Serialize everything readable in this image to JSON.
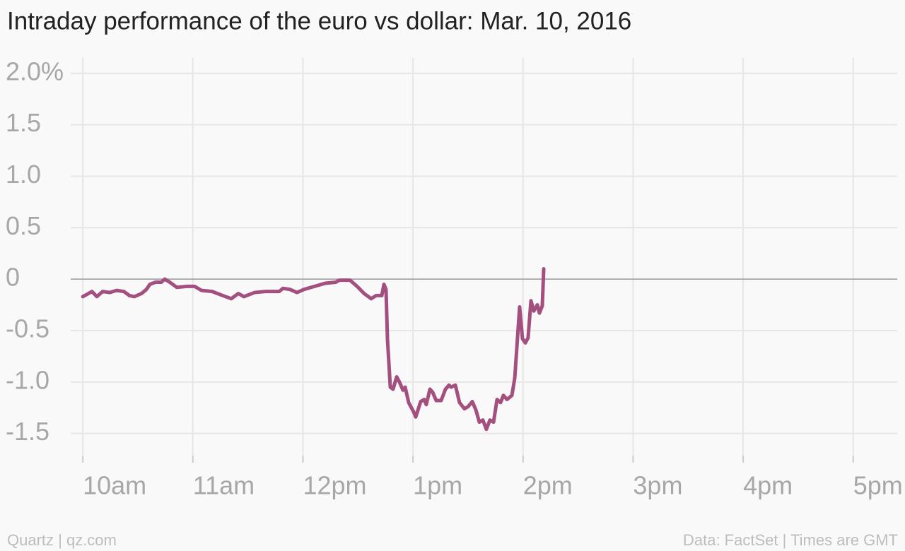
{
  "chart_data": {
    "type": "line",
    "title": "Intraday performance of the euro vs dollar: Mar. 10, 2016",
    "credit": "Quartz | qz.com",
    "source": "Data: FactSet | Times are GMT",
    "x": [
      10.0,
      10.051,
      10.083,
      10.128,
      10.18,
      10.244,
      10.308,
      10.373,
      10.424,
      10.469,
      10.533,
      10.578,
      10.61,
      10.662,
      10.713,
      10.745,
      10.79,
      10.854,
      10.951,
      11.015,
      11.079,
      11.175,
      11.272,
      11.349,
      11.413,
      11.464,
      11.561,
      11.657,
      11.785,
      11.818,
      11.882,
      11.946,
      12.01,
      12.075,
      12.139,
      12.203,
      12.299,
      12.331,
      12.428,
      12.492,
      12.556,
      12.62,
      12.665,
      12.717,
      12.736,
      12.755,
      12.768,
      12.794,
      12.819,
      12.852,
      12.877,
      12.909,
      12.929,
      12.961,
      13.006,
      13.025,
      13.07,
      13.102,
      13.121,
      13.154,
      13.179,
      13.211,
      13.256,
      13.295,
      13.327,
      13.346,
      13.385,
      13.423,
      13.468,
      13.5,
      13.539,
      13.571,
      13.603,
      13.635,
      13.667,
      13.699,
      13.732,
      13.764,
      13.796,
      13.822,
      13.854,
      13.899,
      13.925,
      13.969,
      13.995,
      14.021,
      14.046,
      14.072,
      14.098,
      14.13,
      14.149,
      14.175,
      14.188
    ],
    "series": [
      {
        "color": "#a4507f",
        "values": [
          -0.17,
          -0.14,
          -0.12,
          -0.17,
          -0.12,
          -0.13,
          -0.11,
          -0.12,
          -0.16,
          -0.17,
          -0.14,
          -0.1,
          -0.05,
          -0.03,
          -0.03,
          0,
          -0.03,
          -0.08,
          -0.07,
          -0.07,
          -0.11,
          -0.12,
          -0.16,
          -0.19,
          -0.14,
          -0.17,
          -0.13,
          -0.12,
          -0.12,
          -0.09,
          -0.1,
          -0.13,
          -0.1,
          -0.08,
          -0.06,
          -0.04,
          -0.03,
          -0.01,
          -0.01,
          -0.07,
          -0.14,
          -0.19,
          -0.16,
          -0.16,
          -0.05,
          -0.1,
          -0.58,
          -1.05,
          -1.07,
          -0.95,
          -1.0,
          -1.08,
          -1.05,
          -1.2,
          -1.29,
          -1.34,
          -1.19,
          -1.17,
          -1.22,
          -1.07,
          -1.1,
          -1.18,
          -1.18,
          -1.07,
          -1.03,
          -1.05,
          -1.03,
          -1.2,
          -1.26,
          -1.24,
          -1.19,
          -1.27,
          -1.39,
          -1.37,
          -1.46,
          -1.37,
          -1.39,
          -1.17,
          -1.2,
          -1.13,
          -1.17,
          -1.13,
          -0.96,
          -0.27,
          -0.58,
          -0.62,
          -0.57,
          -0.21,
          -0.31,
          -0.25,
          -0.33,
          -0.26,
          0.1
        ]
      }
    ],
    "xlim": [
      9.89,
      17.4
    ],
    "xticks": [
      {
        "value": 10,
        "label": "10am"
      },
      {
        "value": 11,
        "label": "11am"
      },
      {
        "value": 12,
        "label": "12pm"
      },
      {
        "value": 13,
        "label": "1pm"
      },
      {
        "value": 14,
        "label": "2pm"
      },
      {
        "value": 15,
        "label": "3pm"
      },
      {
        "value": 16,
        "label": "4pm"
      },
      {
        "value": 17,
        "label": "5pm"
      }
    ],
    "ylim": [
      -1.75,
      2.15
    ],
    "yticks": [
      {
        "value": 2,
        "label": "2.0%"
      },
      1.5,
      {
        "value": 1,
        "label": "1.0"
      },
      0.5,
      0,
      -0.5,
      {
        "value": -1,
        "label": "-1.0"
      },
      -1.5
    ],
    "grid": true
  }
}
